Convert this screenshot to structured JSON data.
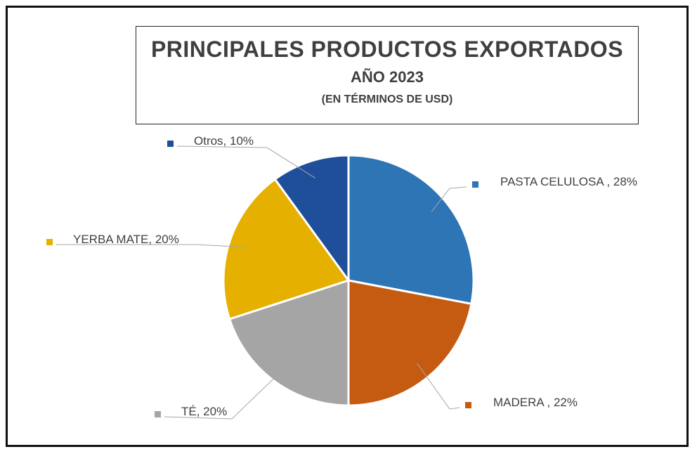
{
  "chart_data": {
    "type": "pie",
    "title": "PRINCIPALES PRODUCTOS EXPORTADOS",
    "subtitle": "AÑO 2023",
    "subtitle2": "(EN TÉRMINOS DE USD)",
    "slices": [
      {
        "name": "PASTA CELULOSA",
        "value": 28,
        "color": "#2E75B6",
        "label": "PASTA CELULOSA , 28%"
      },
      {
        "name": "MADERA",
        "value": 22,
        "color": "#C55A11",
        "label": "MADERA , 22%"
      },
      {
        "name": "TÉ",
        "value": 20,
        "color": "#A5A5A5",
        "label": "TÉ, 20%"
      },
      {
        "name": "YERBA MATE",
        "value": 20,
        "color": "#E6B000",
        "label": "YERBA MATE, 20%"
      },
      {
        "name": "Otros",
        "value": 10,
        "color": "#1F4E9A",
        "label": "Otros, 10%"
      }
    ]
  }
}
